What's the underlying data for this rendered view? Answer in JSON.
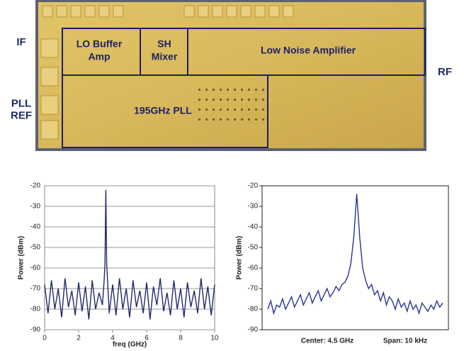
{
  "die_photo": {
    "side_labels": [
      [
        "IF"
      ],
      [
        "PLL",
        "REF"
      ],
      [
        "RF"
      ]
    ],
    "blocks": [
      [
        "LO Buffer",
        "Amp"
      ],
      [
        "SH",
        "Mixer"
      ],
      [
        "Low Noise Amplifier"
      ],
      [
        "195GHz PLL"
      ]
    ]
  },
  "chart_data": [
    {
      "type": "line",
      "xlabel": "freq (GHz)",
      "ylabel": "Power (dBm)",
      "x": [
        0,
        0.2,
        0.4,
        0.6,
        0.8,
        1,
        1.2,
        1.4,
        1.6,
        1.8,
        2,
        2.2,
        2.4,
        2.6,
        2.8,
        3,
        3.2,
        3.4,
        3.5,
        3.55,
        3.6,
        3.65,
        3.7,
        3.8,
        4,
        4.2,
        4.4,
        4.6,
        4.8,
        5,
        5.2,
        5.4,
        5.6,
        5.8,
        6,
        6.2,
        6.4,
        6.6,
        6.8,
        7,
        7.2,
        7.4,
        7.6,
        7.8,
        8,
        8.2,
        8.4,
        8.6,
        8.8,
        9,
        9.2,
        9.4,
        9.6,
        9.8,
        10
      ],
      "series": [
        {
          "color": "#1f2a6b",
          "values": [
            -68,
            -82,
            -66,
            -80,
            -70,
            -84,
            -65,
            -79,
            -71,
            -83,
            -67,
            -81,
            -69,
            -85,
            -66,
            -80,
            -72,
            -78,
            -66,
            -58,
            -22,
            -58,
            -66,
            -82,
            -68,
            -83,
            -65,
            -80,
            -70,
            -84,
            -66,
            -79,
            -71,
            -82,
            -67,
            -85,
            -69,
            -78,
            -65,
            -81,
            -72,
            -83,
            -66,
            -80,
            -70,
            -84,
            -67,
            -79,
            -71,
            -82,
            -65,
            -80,
            -69,
            -83,
            -68
          ]
        }
      ],
      "xlim": [
        0,
        10
      ],
      "xticks": [
        0,
        2,
        4,
        6,
        8,
        10
      ],
      "ylim": [
        -90,
        -20
      ],
      "yticks": [
        -90,
        -80,
        -70,
        -60,
        -50,
        -40,
        -30,
        -20
      ],
      "grid": true
    },
    {
      "type": "line",
      "ylabel": "Power (dBm)",
      "annotations": [
        "Center: 4.5 GHz",
        "Span: 10 kHz"
      ],
      "series": [
        {
          "color": "#2a3590",
          "values": [
            -80,
            -76,
            -82,
            -78,
            -79,
            -75,
            -80,
            -77,
            -74,
            -79,
            -76,
            -73,
            -78,
            -75,
            -72,
            -77,
            -74,
            -71,
            -76,
            -73,
            -70,
            -74,
            -72,
            -69,
            -71,
            -68,
            -67,
            -64,
            -58,
            -45,
            -24,
            -45,
            -60,
            -66,
            -70,
            -68,
            -73,
            -71,
            -76,
            -72,
            -78,
            -74,
            -76,
            -80,
            -75,
            -79,
            -77,
            -81,
            -76,
            -80,
            -78,
            -82,
            -77,
            -79,
            -81,
            -78,
            -80,
            -76,
            -79,
            -77
          ]
        }
      ],
      "ylim": [
        -90,
        -20
      ],
      "yticks": [
        -90,
        -80,
        -70,
        -60,
        -50,
        -40,
        -30,
        -20
      ],
      "grid": false
    }
  ]
}
